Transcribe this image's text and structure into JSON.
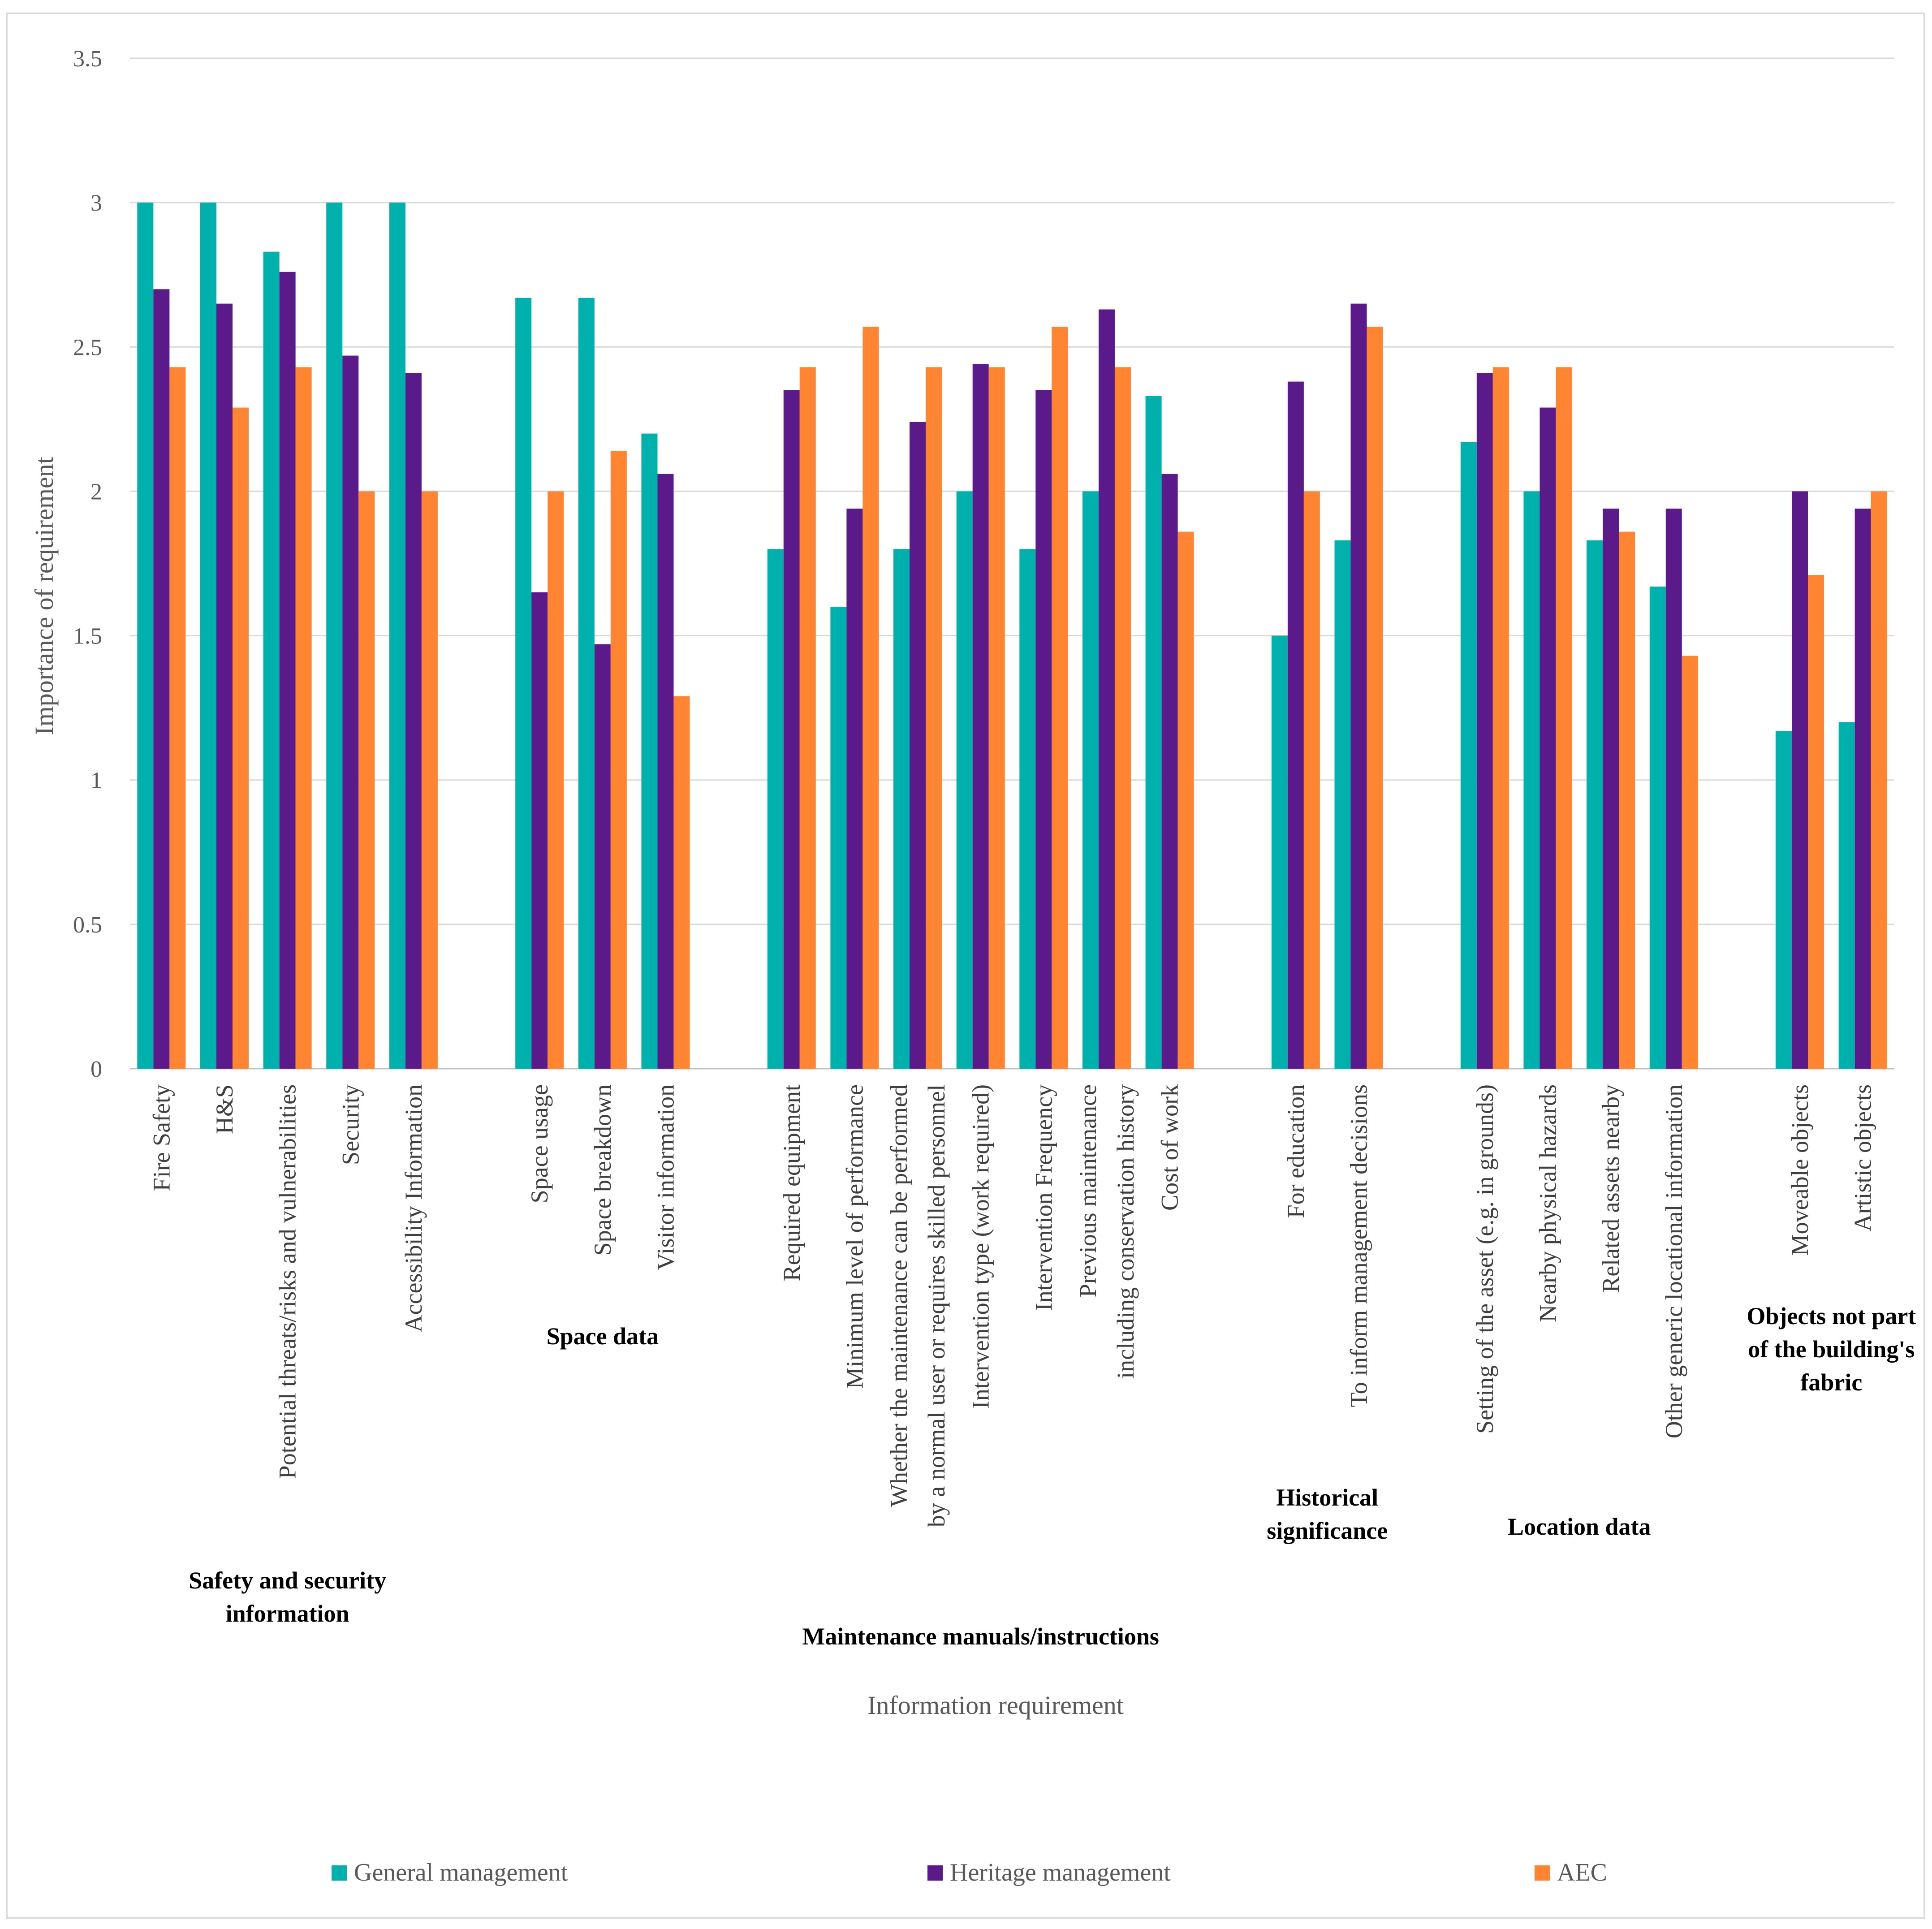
{
  "chart_data": {
    "type": "bar",
    "ylabel": "Importance of requirement",
    "xlabel": "Information requirement",
    "ylim": [
      0,
      3.5
    ],
    "yticks": [
      "0",
      "0.5",
      "1",
      "1.5",
      "2",
      "2.5",
      "3",
      "3.5"
    ],
    "grid": true,
    "legend_position": "bottom",
    "groups": [
      {
        "label": [
          "Safety and security",
          "information"
        ],
        "categories": [
          [
            "Fire Safety"
          ],
          [
            "H&S"
          ],
          [
            "Potential threats/risks and vulnerabilities"
          ],
          [
            "Security"
          ],
          [
            "Accessibility Information"
          ]
        ]
      },
      {
        "label": [
          "Space data"
        ],
        "categories": [
          [
            "Space usage"
          ],
          [
            "Space breakdown"
          ],
          [
            "Visitor information"
          ]
        ]
      },
      {
        "label": [
          "Maintenance manuals/instructions"
        ],
        "categories": [
          [
            "Required equipment"
          ],
          [
            "Minimum level of performance"
          ],
          [
            "Whether the maintenance can be performed",
            "by a normal user or requires skilled personnel"
          ],
          [
            "Intervention type (work required)"
          ],
          [
            "Intervention Frequency"
          ],
          [
            "Previous maintenance",
            "including conservation history"
          ],
          [
            "Cost of work"
          ]
        ]
      },
      {
        "label": [
          "Historical",
          "significance"
        ],
        "categories": [
          [
            "For education"
          ],
          [
            "To inform management decisions"
          ]
        ]
      },
      {
        "label": [
          "Location data"
        ],
        "categories": [
          [
            "Setting of the asset (e.g. in grounds)"
          ],
          [
            "Nearby physical hazards"
          ],
          [
            "Related assets nearby"
          ],
          [
            "Other generic locational information"
          ]
        ]
      },
      {
        "label": [
          "Objects not part",
          "of the building's",
          "fabric"
        ],
        "categories": [
          [
            "Moveable objects"
          ],
          [
            "Artistic objects"
          ]
        ]
      }
    ],
    "series": [
      {
        "name": "General management",
        "color": "#00b0ac",
        "values": [
          3.0,
          3.0,
          2.83,
          3.0,
          3.0,
          2.67,
          2.67,
          2.2,
          1.8,
          1.6,
          1.8,
          2.0,
          1.8,
          2.0,
          2.33,
          1.5,
          1.83,
          2.17,
          2.0,
          1.83,
          1.67,
          1.17,
          1.2
        ]
      },
      {
        "name": "Heritage management",
        "color": "#5b1a8a",
        "values": [
          2.7,
          2.65,
          2.76,
          2.47,
          2.41,
          1.65,
          1.47,
          2.06,
          2.35,
          1.94,
          2.24,
          2.44,
          2.35,
          2.63,
          2.06,
          2.38,
          2.65,
          2.41,
          2.29,
          1.94,
          1.94,
          2.0,
          1.94
        ]
      },
      {
        "name": "AEC",
        "color": "#ff8533",
        "values": [
          2.43,
          2.29,
          2.43,
          2.0,
          2.0,
          2.0,
          2.14,
          1.29,
          2.43,
          2.57,
          2.43,
          2.43,
          2.57,
          2.43,
          1.86,
          2.0,
          2.57,
          2.43,
          2.43,
          1.86,
          1.43,
          1.71,
          2.0
        ]
      }
    ]
  }
}
